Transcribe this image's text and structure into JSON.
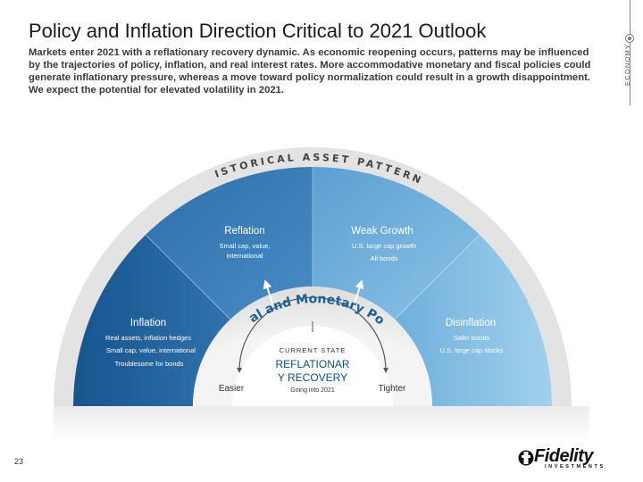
{
  "header": {
    "title": "Policy and Inflation Direction Critical to 2021 Outlook",
    "intro": "Markets enter 2021 with a reflationary recovery dynamic. As economic reopening occurs, patterns may be influenced by the trajectories of policy, inflation, and real interest rates. More accommodative monetary and fiscal policies could generate inflationary pressure, whereas a move toward policy normalization could result in a growth disappointment. We expect the potential for elevated volatility in 2021."
  },
  "side_tab": {
    "label": "ECONOMY"
  },
  "diagram": {
    "outer_arc_label": "HISTORICAL ASSET PATTERNS",
    "inner_arc_label": "Fiscal and Monetary Policy",
    "segments": {
      "reflation": {
        "title": "Reflation",
        "line1": "Small cap, value,",
        "line2": "international"
      },
      "weak_growth": {
        "title": "Weak Growth",
        "line1": "U.S. large cap growth",
        "line2": "All bonds"
      },
      "inflation": {
        "title": "Inflation",
        "line1": "Real assets, inflation hedges",
        "line2": "Small cap, value, international",
        "line3": "Troublesome for bonds"
      },
      "disinflation": {
        "title": "Disinflation",
        "line1": "Safer bonds",
        "line2": "U.S. large cap stocks"
      }
    },
    "scale": {
      "left": "Easier",
      "right": "Tighter"
    },
    "center": {
      "eyebrow": "CURRENT STATE",
      "line1": "REFLATIONAR",
      "line2": "Y RECOVERY",
      "sub": "Going into 2021"
    },
    "colors": {
      "reflation": "#3d7fb8",
      "weak_growth": "#6aa9d8",
      "inflation": "#1f5f98",
      "disinflation": "#84bde2",
      "inner_ring": "#e6e6e6",
      "center_text": "#0b4f86"
    }
  },
  "footer": {
    "page_number": "23",
    "logo_word": "Fidelity",
    "logo_sub": "INVESTMENTS"
  }
}
